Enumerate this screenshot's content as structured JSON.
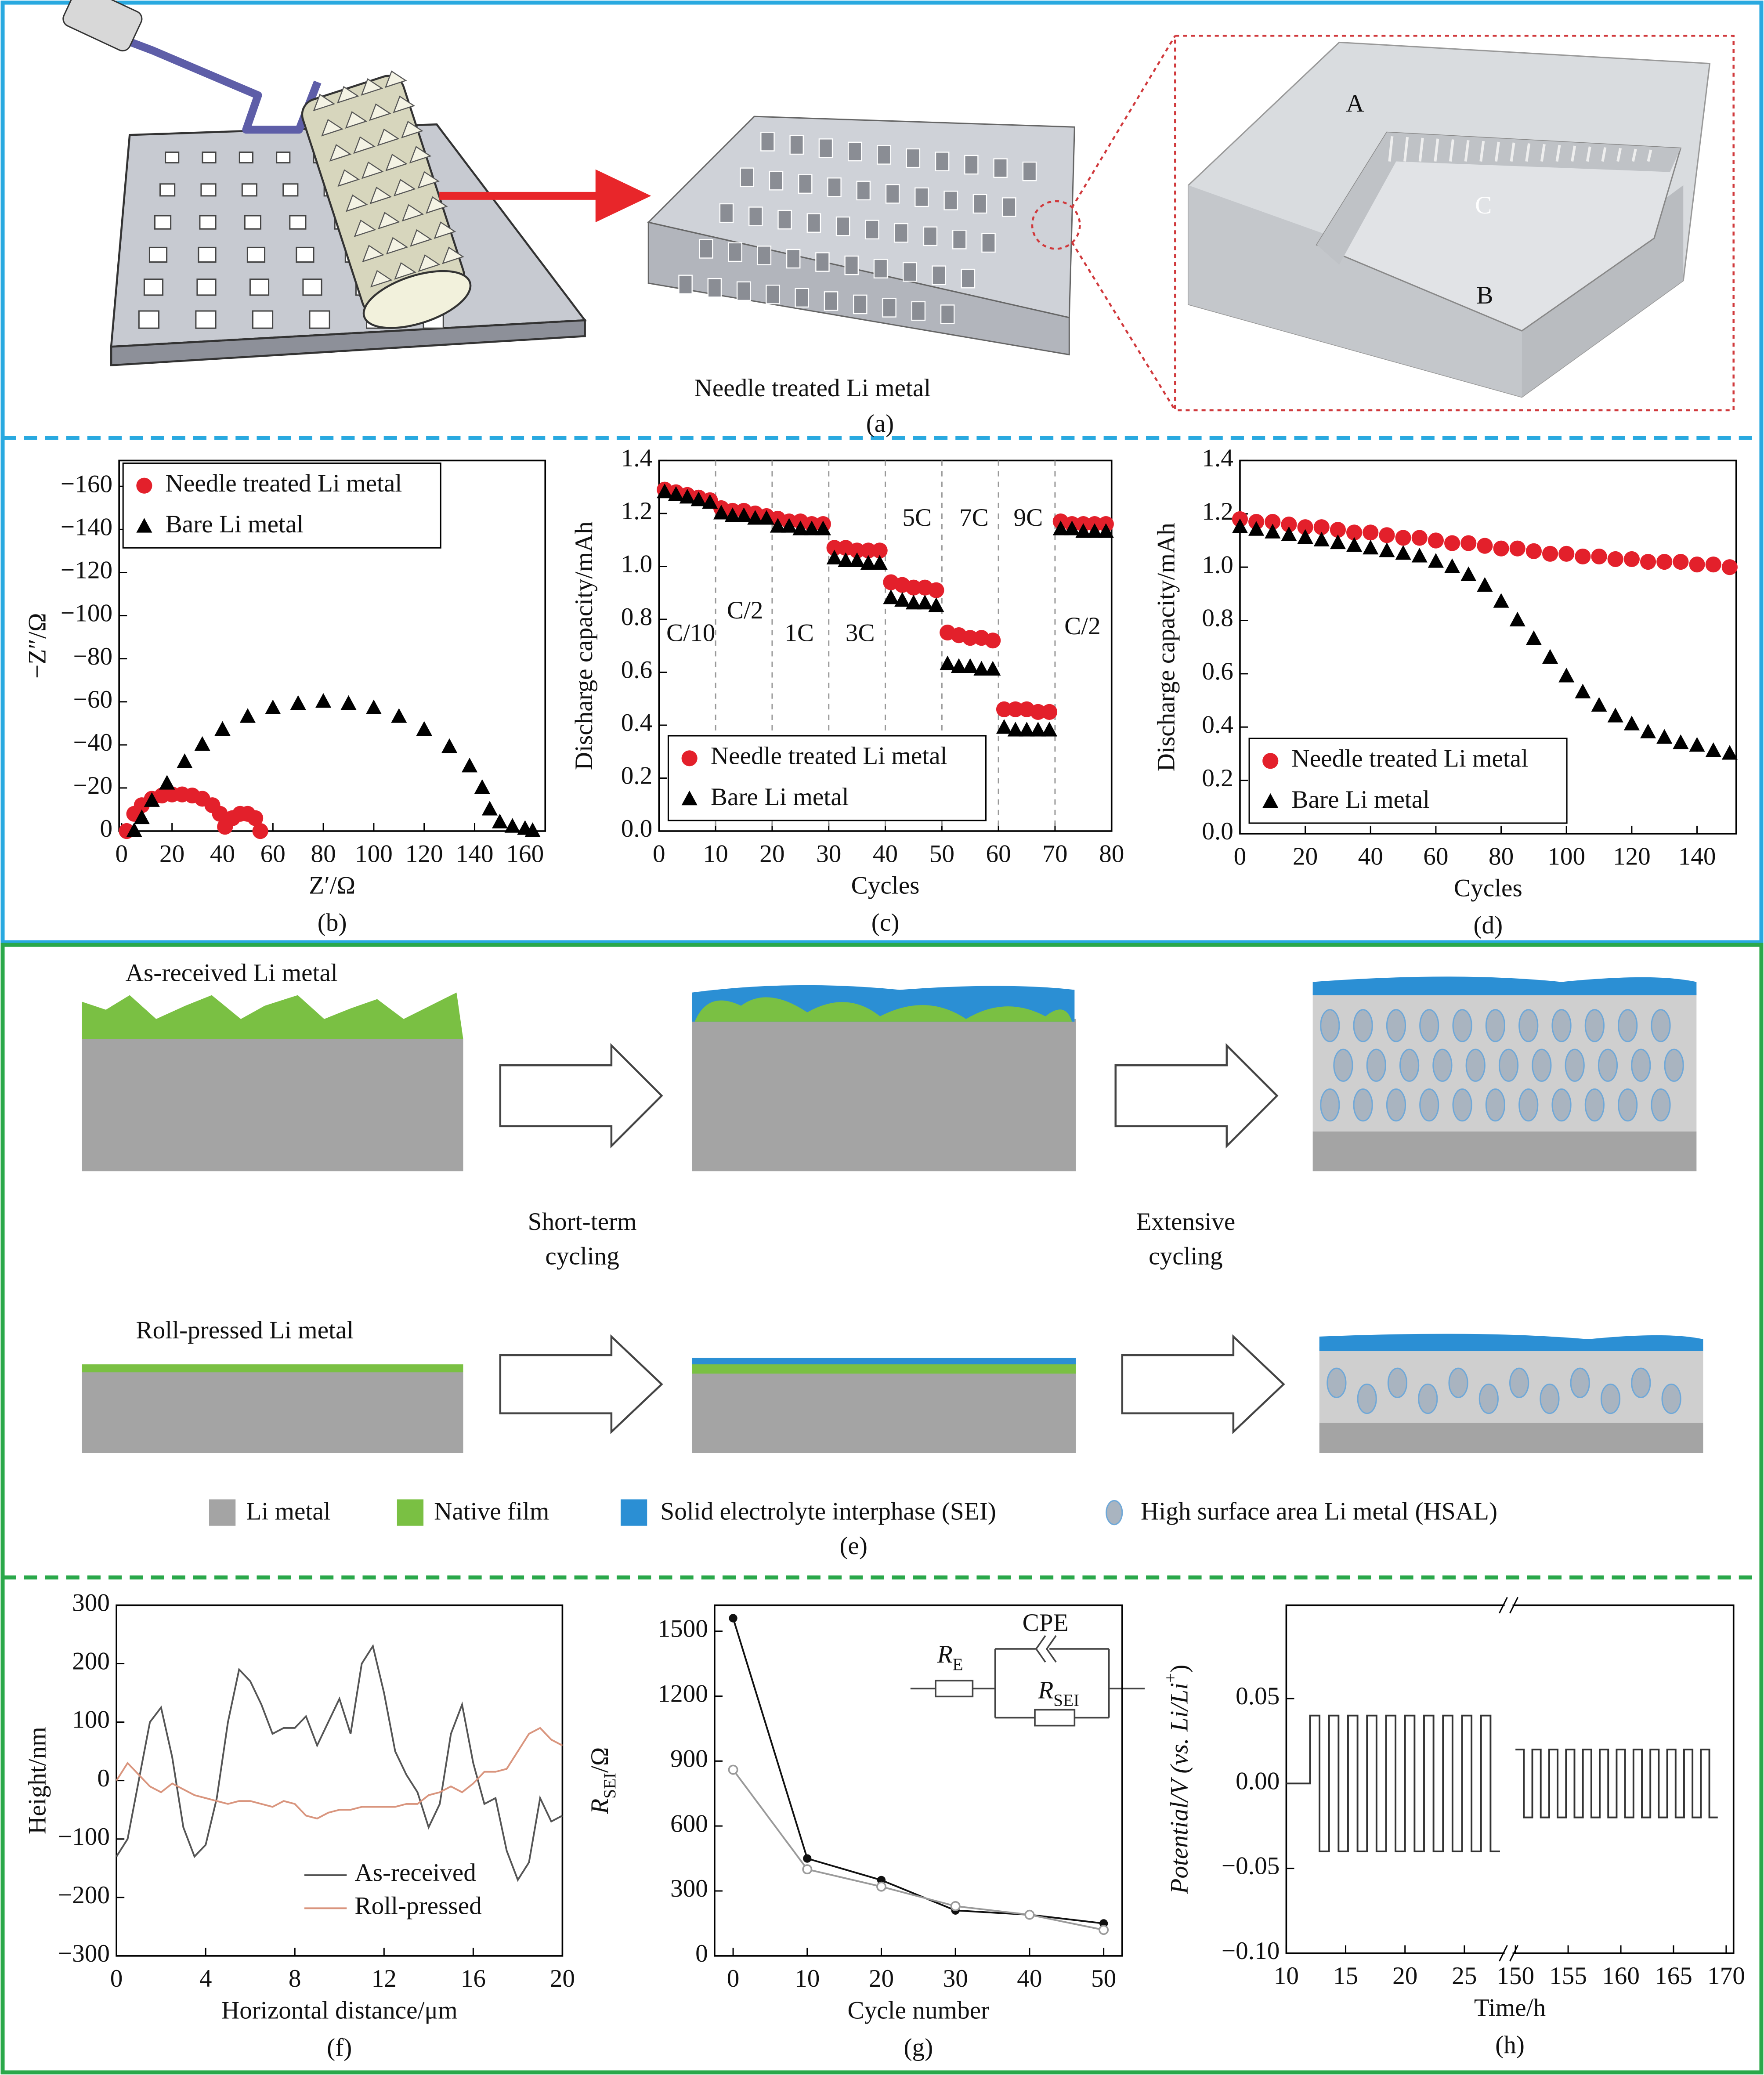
{
  "panels": {
    "a": {
      "label": "Needle treated Li metal",
      "caption": "(a)",
      "regions": [
        "A",
        "B",
        "C"
      ]
    },
    "e": {
      "rows": [
        {
          "title": "As-received Li metal"
        },
        {
          "title": "Roll-pressed Li metal"
        }
      ],
      "steps": [
        [
          "Short-term",
          "cycling"
        ],
        [
          "Extensive",
          "cycling"
        ]
      ],
      "legend": [
        "Li metal",
        "Native film",
        "Solid electrolyte interphase (SEI)",
        "High surface area Li metal (HSAL)"
      ],
      "caption": "(e)"
    }
  },
  "chart_data": [
    {
      "type": "scatter",
      "caption": "(b)",
      "xlabel": "Z′/Ω",
      "ylabel": "−Z″/Ω",
      "xlim": [
        -1,
        168
      ],
      "xticks": [
        0,
        20,
        40,
        60,
        80,
        100,
        120,
        140,
        160
      ],
      "ylim": [
        0,
        -172
      ],
      "yticks": [
        0,
        {
          "value": -20,
          "label": "−20"
        },
        {
          "value": -40,
          "label": "−40"
        },
        {
          "value": -60,
          "label": "−60"
        },
        {
          "value": -80,
          "label": "−80"
        },
        {
          "value": -100,
          "label": "−100"
        },
        {
          "value": -120,
          "label": "−120"
        },
        {
          "value": -140,
          "label": "−140"
        },
        {
          "value": -160,
          "label": "−160"
        }
      ],
      "legend": "upper left",
      "series": [
        {
          "name": "Needle treated Li metal",
          "color": "#e3202b",
          "marker": "circle",
          "x": [
            2,
            5,
            8,
            12,
            16,
            20,
            24,
            28,
            32,
            36,
            39,
            41,
            44,
            47,
            50,
            53,
            55
          ],
          "values": [
            0,
            -8,
            -12,
            -15,
            -16.5,
            -17,
            -17,
            -16.5,
            -15,
            -12,
            -8,
            -2,
            -6,
            -8,
            -8,
            -6,
            0
          ]
        },
        {
          "name": "Bare Li metal",
          "color": "#000000",
          "marker": "triangle",
          "x": [
            5,
            8,
            12,
            18,
            25,
            32,
            40,
            50,
            60,
            70,
            80,
            90,
            100,
            110,
            120,
            130,
            138,
            143,
            146,
            150,
            155,
            160,
            163
          ],
          "values": [
            0,
            -6,
            -14,
            -22,
            -32,
            -40,
            -47,
            -53,
            -57,
            -59,
            -60,
            -59,
            -57,
            -53,
            -47,
            -39,
            -30,
            -20,
            -10,
            -4,
            -2,
            -1,
            0
          ]
        }
      ]
    },
    {
      "type": "scatter",
      "caption": "(c)",
      "xlabel": "Cycles",
      "ylabel": "Discharge capacity/mAh",
      "xlim": [
        0,
        80
      ],
      "xticks": [
        0,
        10,
        20,
        30,
        40,
        50,
        60,
        70,
        80
      ],
      "ylim": [
        0,
        1.4
      ],
      "yticks": [
        {
          "value": 0,
          "label": "0.0"
        },
        0.2,
        0.4,
        0.6,
        0.8,
        {
          "value": 1,
          "label": "1.0"
        },
        1.2,
        1.4
      ],
      "vlines": [
        10,
        20,
        30,
        40,
        50,
        60,
        70
      ],
      "annotations": [
        "C/10",
        "C/2",
        "1C",
        "3C",
        "5C",
        "7C",
        "9C",
        "C/2"
      ],
      "legend": "lower left",
      "series": [
        {
          "name": "Needle treated Li metal",
          "color": "#e3202b",
          "marker": "circle",
          "x": [
            1,
            3,
            5,
            7,
            9,
            11,
            13,
            15,
            17,
            19,
            21,
            23,
            25,
            27,
            29,
            31,
            33,
            35,
            37,
            39,
            41,
            43,
            45,
            47,
            49,
            51,
            53,
            55,
            57,
            59,
            61,
            63,
            65,
            67,
            69,
            71,
            73,
            75,
            77,
            79
          ],
          "values": [
            1.29,
            1.28,
            1.27,
            1.26,
            1.25,
            1.22,
            1.21,
            1.21,
            1.2,
            1.19,
            1.18,
            1.17,
            1.17,
            1.16,
            1.16,
            1.07,
            1.07,
            1.06,
            1.06,
            1.06,
            0.94,
            0.93,
            0.92,
            0.92,
            0.91,
            0.75,
            0.74,
            0.73,
            0.73,
            0.72,
            0.46,
            0.46,
            0.46,
            0.45,
            0.45,
            1.17,
            1.16,
            1.16,
            1.16,
            1.16
          ]
        },
        {
          "name": "Bare Li metal",
          "color": "#000000",
          "marker": "triangle",
          "x": [
            1,
            3,
            5,
            7,
            9,
            11,
            13,
            15,
            17,
            19,
            21,
            23,
            25,
            27,
            29,
            31,
            33,
            35,
            37,
            39,
            41,
            43,
            45,
            47,
            49,
            51,
            53,
            55,
            57,
            59,
            61,
            63,
            65,
            67,
            69,
            71,
            73,
            75,
            77,
            79
          ],
          "values": [
            1.28,
            1.27,
            1.26,
            1.25,
            1.24,
            1.2,
            1.19,
            1.19,
            1.18,
            1.18,
            1.15,
            1.15,
            1.14,
            1.14,
            1.14,
            1.03,
            1.02,
            1.02,
            1.01,
            1.01,
            0.88,
            0.87,
            0.86,
            0.86,
            0.85,
            0.63,
            0.62,
            0.62,
            0.61,
            0.61,
            0.39,
            0.38,
            0.38,
            0.38,
            0.38,
            1.14,
            1.14,
            1.13,
            1.13,
            1.13
          ]
        }
      ]
    },
    {
      "type": "scatter",
      "caption": "(d)",
      "xlabel": "Cycles",
      "ylabel": "Discharge capacity/mAh",
      "xlim": [
        0,
        152
      ],
      "xticks": [
        0,
        20,
        40,
        60,
        80,
        100,
        120,
        140
      ],
      "ylim": [
        0,
        1.4
      ],
      "yticks": [
        {
          "value": 0,
          "label": "0.0"
        },
        0.2,
        0.4,
        0.6,
        0.8,
        {
          "value": 1,
          "label": "1.0"
        },
        1.2,
        1.4
      ],
      "legend": "lower left",
      "series": [
        {
          "name": "Needle treated Li metal",
          "color": "#e3202b",
          "marker": "circle",
          "x": [
            0,
            5,
            10,
            15,
            20,
            25,
            30,
            35,
            40,
            45,
            50,
            55,
            60,
            65,
            70,
            75,
            80,
            85,
            90,
            95,
            100,
            105,
            110,
            115,
            120,
            125,
            130,
            135,
            140,
            145,
            150
          ],
          "values": [
            1.18,
            1.17,
            1.17,
            1.16,
            1.15,
            1.15,
            1.14,
            1.13,
            1.13,
            1.12,
            1.11,
            1.11,
            1.1,
            1.09,
            1.09,
            1.08,
            1.07,
            1.07,
            1.06,
            1.05,
            1.05,
            1.04,
            1.04,
            1.03,
            1.03,
            1.02,
            1.02,
            1.02,
            1.01,
            1.01,
            1.0
          ]
        },
        {
          "name": "Bare Li metal",
          "color": "#000000",
          "marker": "triangle",
          "x": [
            0,
            5,
            10,
            15,
            20,
            25,
            30,
            35,
            40,
            45,
            50,
            55,
            60,
            65,
            70,
            75,
            80,
            85,
            90,
            95,
            100,
            105,
            110,
            115,
            120,
            125,
            130,
            135,
            140,
            145,
            150
          ],
          "values": [
            1.15,
            1.14,
            1.13,
            1.12,
            1.11,
            1.1,
            1.09,
            1.08,
            1.07,
            1.06,
            1.05,
            1.04,
            1.02,
            1.0,
            0.97,
            0.93,
            0.87,
            0.8,
            0.73,
            0.66,
            0.59,
            0.53,
            0.48,
            0.44,
            0.41,
            0.38,
            0.36,
            0.34,
            0.33,
            0.31,
            0.3
          ]
        }
      ]
    },
    {
      "type": "line",
      "caption": "(f)",
      "xlabel": "Horizontal distance/μm",
      "ylabel": "Height/nm",
      "xlim": [
        0,
        20
      ],
      "xticks": [
        0,
        4,
        8,
        12,
        16,
        20
      ],
      "ylim": [
        -300,
        300
      ],
      "yticks": [
        {
          "value": -300,
          "label": "−300"
        },
        {
          "value": -200,
          "label": "−200"
        },
        {
          "value": -100,
          "label": "−100"
        },
        0,
        100,
        200,
        300
      ],
      "legend": "lower right",
      "legend_frame": false,
      "series": [
        {
          "name": "As-received",
          "color": "#555555",
          "x": [
            0,
            0.5,
            1,
            1.5,
            2,
            2.5,
            3,
            3.5,
            4,
            4.5,
            5,
            5.5,
            6,
            6.5,
            7,
            7.5,
            8,
            8.5,
            9,
            9.5,
            10,
            10.5,
            11,
            11.5,
            12,
            12.5,
            13,
            13.5,
            14,
            14.5,
            15,
            15.5,
            16,
            16.5,
            17,
            17.5,
            18,
            18.5,
            19,
            19.5,
            20
          ],
          "values": [
            -130,
            -100,
            0,
            100,
            125,
            40,
            -80,
            -130,
            -110,
            -30,
            100,
            190,
            170,
            130,
            80,
            90,
            90,
            110,
            60,
            100,
            140,
            80,
            200,
            230,
            150,
            50,
            10,
            -20,
            -80,
            -40,
            80,
            130,
            30,
            -40,
            -30,
            -120,
            -170,
            -140,
            -30,
            -70,
            -60
          ]
        },
        {
          "name": "Roll-pressed",
          "color": "#d9957e",
          "x": [
            0,
            0.5,
            1,
            1.5,
            2,
            2.5,
            3,
            3.5,
            4,
            4.5,
            5,
            5.5,
            6,
            6.5,
            7,
            7.5,
            8,
            8.5,
            9,
            9.5,
            10,
            10.5,
            11,
            11.5,
            12,
            12.5,
            13,
            13.5,
            14,
            14.5,
            15,
            15.5,
            16,
            16.5,
            17,
            17.5,
            18,
            18.5,
            19,
            19.5,
            20
          ],
          "values": [
            0,
            30,
            10,
            -10,
            -20,
            -5,
            -15,
            -25,
            -30,
            -35,
            -40,
            -35,
            -35,
            -40,
            -45,
            -35,
            -40,
            -60,
            -65,
            -55,
            -50,
            -50,
            -45,
            -45,
            -45,
            -45,
            -40,
            -40,
            -25,
            -20,
            -10,
            -20,
            -5,
            15,
            15,
            20,
            50,
            80,
            90,
            70,
            60
          ]
        }
      ]
    },
    {
      "type": "line",
      "caption": "(g)",
      "xlabel": "Cycle number",
      "ylabel": {
        "text": "R",
        "sub": "SEI",
        "after": "/Ω"
      },
      "xlim": [
        -2.5,
        52.5
      ],
      "xticks": [
        0,
        10,
        20,
        30,
        40,
        50
      ],
      "ylim": [
        0,
        1620
      ],
      "yticks": [
        0,
        300,
        600,
        900,
        1200,
        1500
      ],
      "inset": {
        "cpe": "CPE",
        "re": {
          "text": "R",
          "sub": "E"
        },
        "rsei": {
          "text": "R",
          "sub": "SEI"
        }
      },
      "series": [
        {
          "color": "#111111",
          "marker": "circle",
          "x": [
            0,
            10,
            20,
            30,
            40,
            50
          ],
          "values": [
            1560,
            450,
            350,
            210,
            190,
            150
          ]
        },
        {
          "color": "#9a9a9a",
          "marker": "circle-open",
          "x": [
            0,
            10,
            20,
            30,
            40,
            50
          ],
          "values": [
            860,
            400,
            320,
            230,
            190,
            120
          ]
        }
      ]
    },
    {
      "type": "broken-line",
      "caption": "(h)",
      "xlabel": "Time/h",
      "ylabel": {
        "text": "Potential/V (vs. Li/Li",
        "sup": "+",
        "after": ")"
      },
      "ylim": [
        -0.1,
        0.105
      ],
      "yticks": [
        {
          "value": -0.1,
          "label": "−0.10"
        },
        {
          "value": -0.05,
          "label": "−0.05"
        },
        {
          "value": 0,
          "label": "0.00"
        },
        0.05
      ],
      "color": "#333333",
      "segments": [
        {
          "xlim": [
            10,
            28.5
          ],
          "xticks": [
            10,
            15,
            20,
            25
          ],
          "x": [
            10,
            12,
            12,
            12.8,
            12.8,
            13.6,
            13.6,
            14.4,
            14.4,
            15.2,
            15.2,
            16,
            16,
            16.8,
            16.8,
            17.6,
            17.6,
            18.4,
            18.4,
            19.2,
            19.2,
            20,
            20,
            20.8,
            20.8,
            21.6,
            21.6,
            22.4,
            22.4,
            23.2,
            23.2,
            24,
            24,
            24.8,
            24.8,
            25.6,
            25.6,
            26.4,
            26.4,
            27.2,
            27.2,
            28
          ],
          "values": [
            0,
            0,
            0.04,
            0.04,
            -0.04,
            -0.04,
            0.04,
            0.04,
            -0.04,
            -0.04,
            0.04,
            0.04,
            -0.04,
            -0.04,
            0.04,
            0.04,
            -0.04,
            -0.04,
            0.04,
            0.04,
            -0.04,
            -0.04,
            0.04,
            0.04,
            -0.04,
            -0.04,
            0.04,
            0.04,
            -0.04,
            -0.04,
            0.04,
            0.04,
            -0.04,
            -0.04,
            0.04,
            0.04,
            -0.04,
            -0.04,
            0.04,
            0.04,
            -0.04,
            -0.04
          ]
        },
        {
          "xlim": [
            149.6,
            170.7
          ],
          "xticks": [
            150,
            155,
            160,
            165,
            170
          ],
          "x": [
            150,
            150.8,
            150.8,
            151.6,
            151.6,
            152.4,
            152.4,
            153.2,
            153.2,
            154,
            154,
            154.8,
            154.8,
            155.6,
            155.6,
            156.4,
            156.4,
            157.2,
            157.2,
            158,
            158,
            158.8,
            158.8,
            159.6,
            159.6,
            160.4,
            160.4,
            161.2,
            161.2,
            162,
            162,
            162.8,
            162.8,
            163.6,
            163.6,
            164.4,
            164.4,
            165.2,
            165.2,
            166,
            166,
            166.8,
            166.8,
            167.6,
            167.6,
            168.4,
            168.4,
            169.2
          ],
          "values": [
            0.02,
            0.02,
            -0.02,
            -0.02,
            0.02,
            0.02,
            -0.02,
            -0.02,
            0.02,
            0.02,
            -0.02,
            -0.02,
            0.02,
            0.02,
            -0.02,
            -0.02,
            0.02,
            0.02,
            -0.02,
            -0.02,
            0.02,
            0.02,
            -0.02,
            -0.02,
            0.02,
            0.02,
            -0.02,
            -0.02,
            0.02,
            0.02,
            -0.02,
            -0.02,
            0.02,
            0.02,
            -0.02,
            -0.02,
            0.02,
            0.02,
            -0.02,
            -0.02,
            0.02,
            0.02,
            -0.02,
            -0.02,
            0.02,
            0.02,
            -0.02,
            -0.02
          ]
        }
      ]
    }
  ]
}
